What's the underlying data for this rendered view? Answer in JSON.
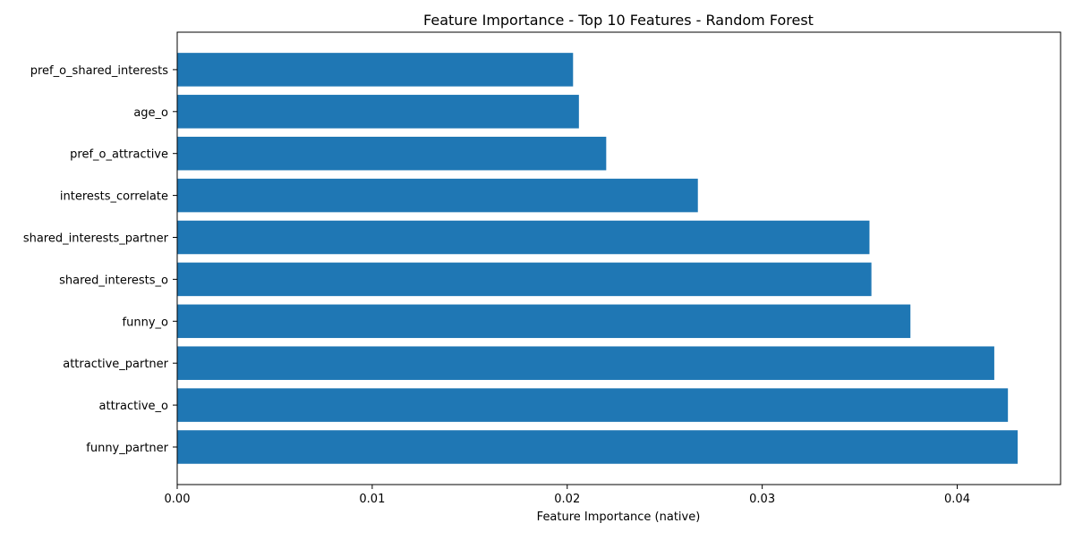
{
  "chart_data": {
    "type": "bar",
    "orientation": "horizontal",
    "title": "Feature Importance - Top 10 Features - Random Forest",
    "xlabel": "Feature Importance (native)",
    "ylabel": "",
    "categories": [
      "funny_partner",
      "attractive_o",
      "attractive_partner",
      "funny_o",
      "shared_interests_o",
      "shared_interests_partner",
      "interests_correlate",
      "pref_o_attractive",
      "age_o",
      "pref_o_shared_interests"
    ],
    "values": [
      0.0431,
      0.0426,
      0.0419,
      0.0376,
      0.0356,
      0.0355,
      0.0267,
      0.022,
      0.0206,
      0.0203
    ],
    "xlim": [
      0,
      0.0453
    ],
    "xticks": [
      0.0,
      0.01,
      0.02,
      0.03,
      0.04
    ],
    "xtick_labels": [
      "0.00",
      "0.01",
      "0.02",
      "0.03",
      "0.04"
    ],
    "bar_color": "#1f77b4",
    "grid": false,
    "legend": "none"
  }
}
